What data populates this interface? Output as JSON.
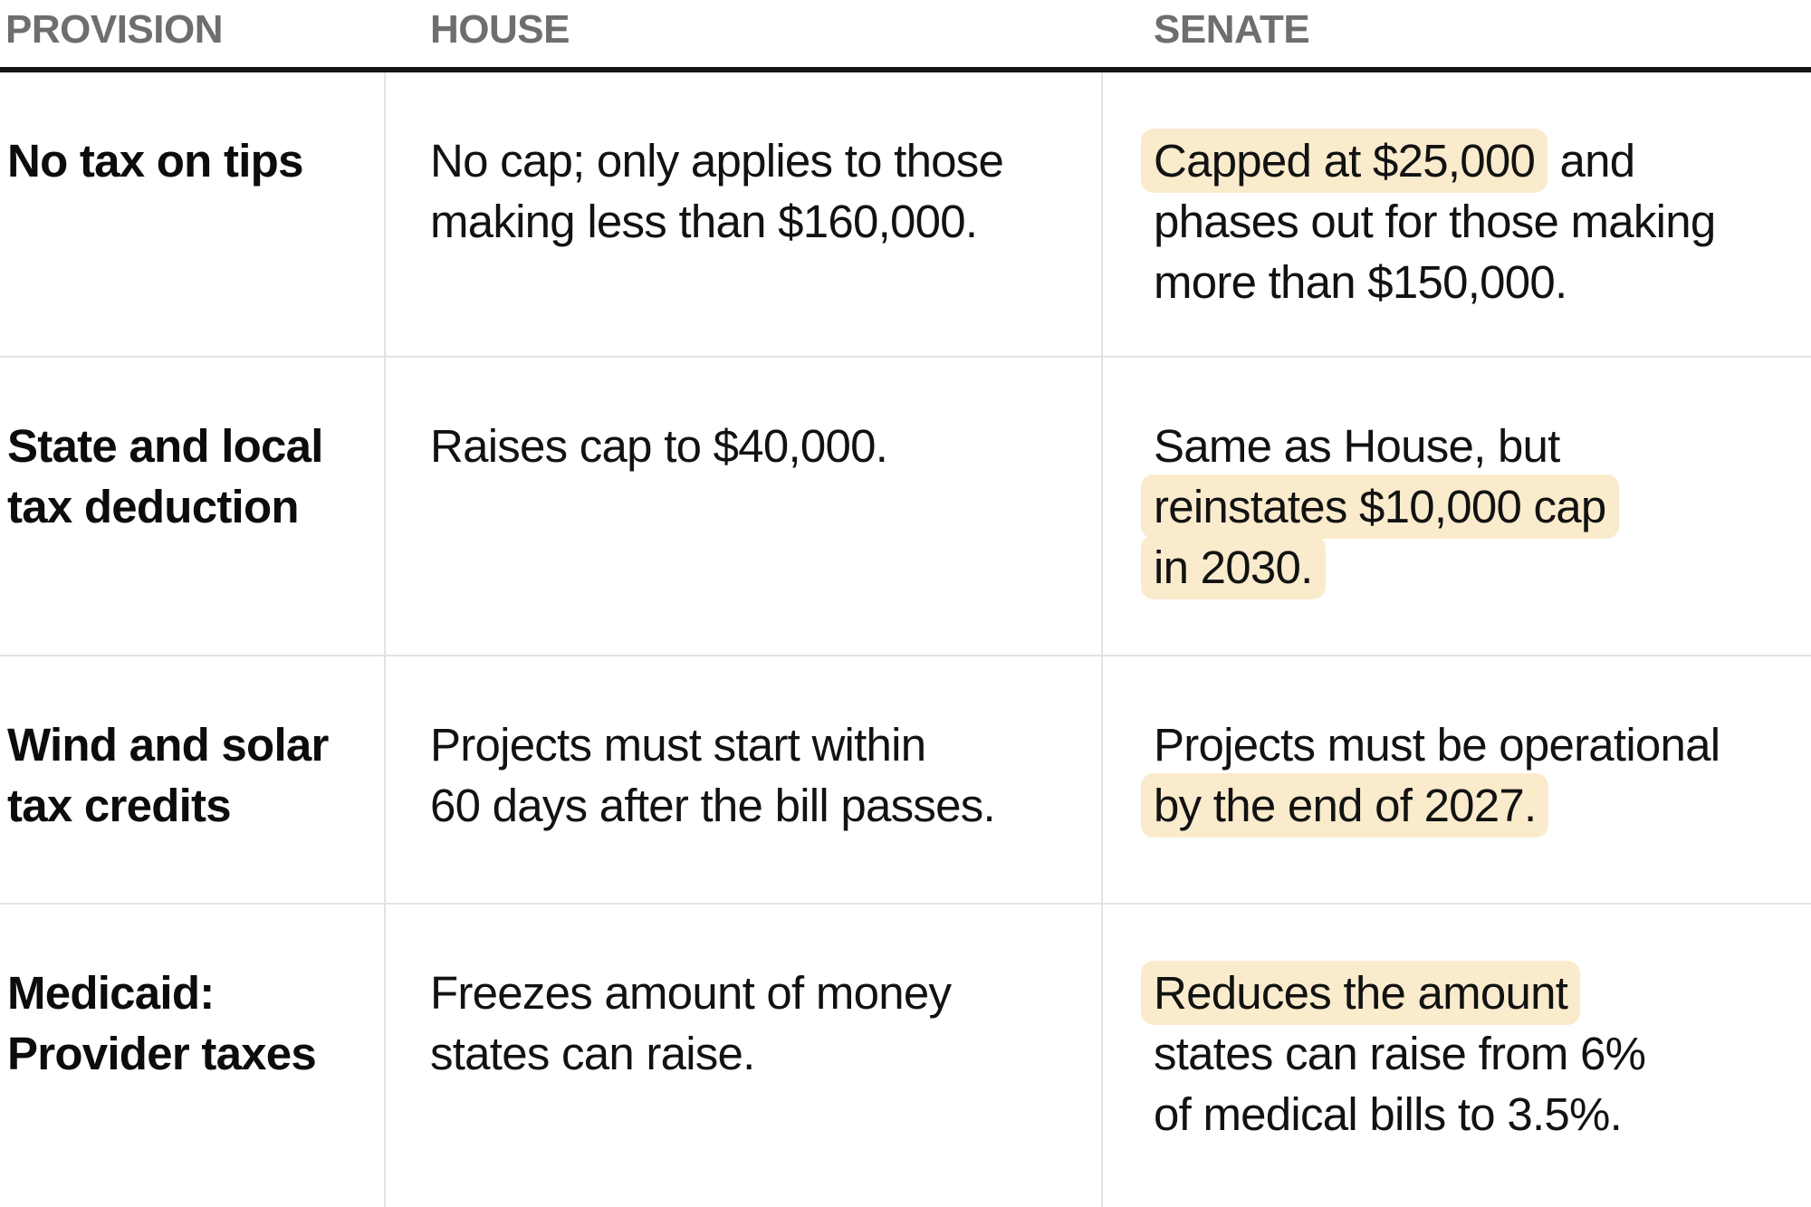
{
  "chart_data": {
    "type": "table",
    "header": {
      "provision": "PROVISION",
      "house": "HOUSE",
      "senate": "SENATE"
    },
    "rows": [
      {
        "provision": "No tax on tips",
        "house": "No cap; only applies to those\nmaking less than $160,000.",
        "senate_segments": [
          {
            "text": "Capped at $25,000",
            "highlight": true
          },
          {
            "text": " and\nphases out for those making\nmore than $150,000.",
            "highlight": false
          }
        ]
      },
      {
        "provision": "State and local\ntax deduction",
        "house": "Raises cap to $40,000.",
        "senate_segments": [
          {
            "text": "Same as House, but\n",
            "highlight": false
          },
          {
            "text": "reinstates $10,000 cap\nin 2030.",
            "highlight": true
          }
        ]
      },
      {
        "provision": "Wind and solar\ntax credits",
        "house": "Projects must start within\n60 days after the bill passes.",
        "senate_segments": [
          {
            "text": "Projects must be operational\n",
            "highlight": false
          },
          {
            "text": "by the end of 2027.",
            "highlight": true
          }
        ]
      },
      {
        "provision": "Medicaid:\nProvider taxes",
        "house": "Freezes amount of money\nstates can raise.",
        "senate_segments": [
          {
            "text": "Reduces the amount",
            "highlight": true
          },
          {
            "text": "\nstates can raise from 6%\nof medical bills to 3.5%.",
            "highlight": false
          }
        ]
      }
    ],
    "colors": {
      "highlight": "#FAEBCD",
      "header_text": "#6e6e6e",
      "body_text": "#121212",
      "rule": "#141414",
      "grid_line": "#e3e3e3",
      "background": "#ffffff"
    },
    "layout_hints": {
      "highlight_meaning": "cream background marks key Senate differences"
    }
  }
}
